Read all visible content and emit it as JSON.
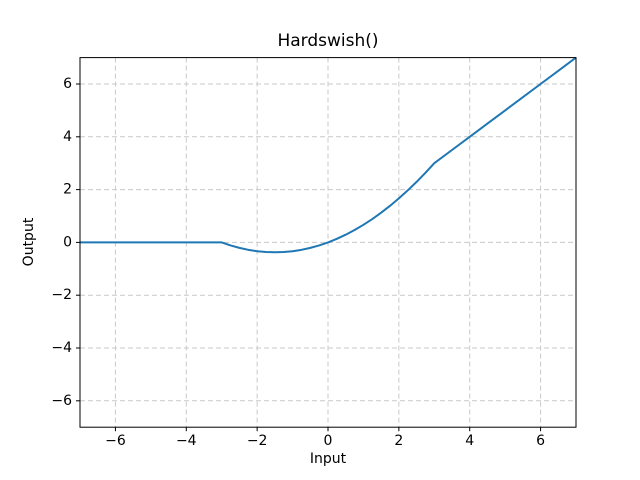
{
  "figure": {
    "background": "#ffffff"
  },
  "colors": {
    "line": "#1f77b4",
    "grid": "#c9c9c9",
    "spine": "#000000",
    "tick": "#000000",
    "text": "#000000"
  },
  "chart_data": {
    "type": "line",
    "title": "Hardswish()",
    "xlabel": "Input",
    "ylabel": "Output",
    "xlim": [
      -7,
      7
    ],
    "ylim": [
      -7,
      7
    ],
    "grid": true,
    "grid_style": "dashed",
    "legend": "none",
    "xticks": {
      "values": [
        -6,
        -4,
        -2,
        0,
        2,
        4,
        6
      ],
      "labels": [
        "−6",
        "−4",
        "−2",
        "0",
        "2",
        "4",
        "6"
      ]
    },
    "yticks": {
      "values": [
        -6,
        -4,
        -2,
        0,
        2,
        4,
        6
      ],
      "labels": [
        "−6",
        "−4",
        "−2",
        "0",
        "2",
        "4",
        "6"
      ]
    },
    "series": [
      {
        "name": "Hardswish",
        "color": "#1f77b4",
        "x": [
          -7.0,
          -6.5,
          -6.0,
          -5.5,
          -5.0,
          -4.5,
          -4.0,
          -3.5,
          -3.0,
          -2.75,
          -2.5,
          -2.25,
          -2.0,
          -1.75,
          -1.5,
          -1.25,
          -1.0,
          -0.75,
          -0.5,
          -0.25,
          0.0,
          0.25,
          0.5,
          0.75,
          1.0,
          1.25,
          1.5,
          1.75,
          2.0,
          2.25,
          2.5,
          2.75,
          3.0,
          3.5,
          4.0,
          4.5,
          5.0,
          5.5,
          6.0,
          6.5,
          7.0
        ],
        "y": [
          0,
          0,
          0,
          0,
          0,
          0,
          0,
          0,
          0,
          -0.1146,
          -0.2083,
          -0.2813,
          -0.3333,
          -0.3646,
          -0.375,
          -0.3646,
          -0.3333,
          -0.2813,
          -0.2083,
          -0.1146,
          0.0,
          0.1354,
          0.2917,
          0.4688,
          0.6667,
          0.8854,
          1.125,
          1.3854,
          1.6667,
          1.9688,
          2.2917,
          2.6354,
          3.0,
          3.5,
          4.0,
          4.5,
          5.0,
          5.5,
          6.0,
          6.5,
          7.0
        ]
      }
    ]
  }
}
